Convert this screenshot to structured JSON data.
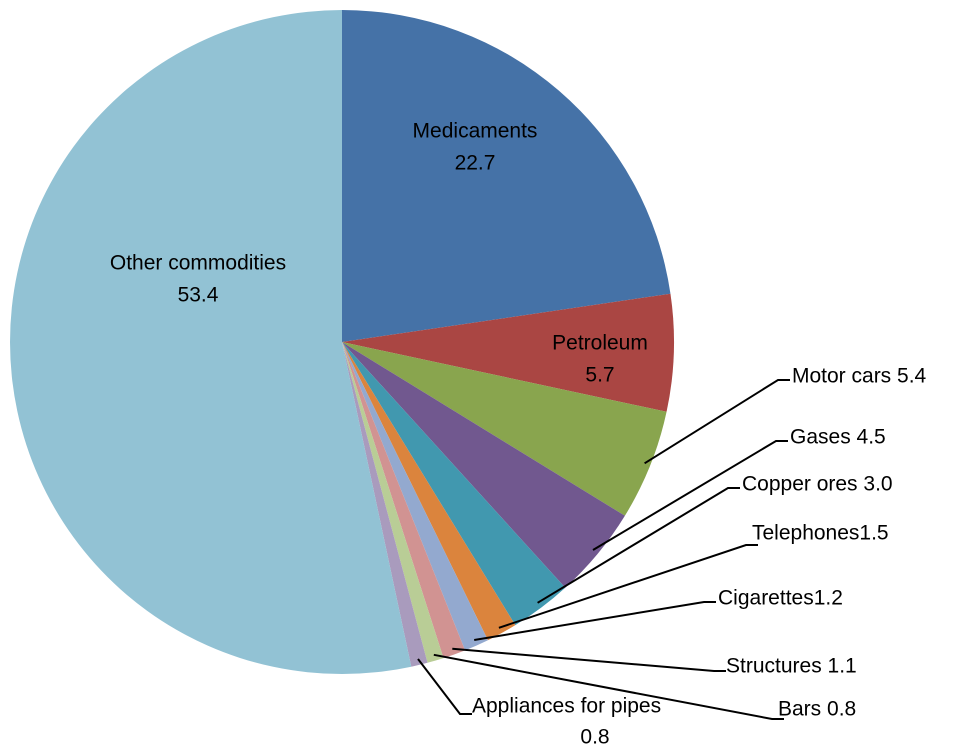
{
  "chart_data": {
    "type": "pie",
    "slices": [
      {
        "label": "Medicaments",
        "value": 22.7,
        "value_text": "22.7",
        "color": "#4572A7",
        "label_style": "inside"
      },
      {
        "label": "Petroleum",
        "value": 5.7,
        "value_text": "5.7",
        "color": "#AA4643",
        "label_style": "inside"
      },
      {
        "label": "Motor cars",
        "value": 5.4,
        "value_text": "Motor cars 5.4",
        "color": "#89A54E",
        "label_style": "leader"
      },
      {
        "label": "Gases",
        "value": 4.5,
        "value_text": "Gases 4.5",
        "color": "#71588F",
        "label_style": "leader"
      },
      {
        "label": "Copper ores",
        "value": 3.0,
        "value_text": "Copper ores 3.0",
        "color": "#4198AF",
        "label_style": "leader"
      },
      {
        "label": "Telephones",
        "value": 1.5,
        "value_text": "Telephones1.5",
        "color": "#DB843D",
        "label_style": "leader"
      },
      {
        "label": "Cigarettes",
        "value": 1.2,
        "value_text": "Cigarettes1.2",
        "color": "#93A9CF",
        "label_style": "leader"
      },
      {
        "label": "Structures",
        "value": 1.1,
        "value_text": "Structures 1.1",
        "color": "#D19392",
        "label_style": "leader"
      },
      {
        "label": "Bars",
        "value": 0.8,
        "value_text": "Bars 0.8",
        "color": "#B9CD96",
        "label_style": "leader"
      },
      {
        "label": "Appliances for pipes",
        "value": 0.8,
        "value_text": "0.8",
        "color": "#A99BBD",
        "label_style": "leader-two-line"
      },
      {
        "label": "Other commodities",
        "value": 53.4,
        "value_text": "53.4",
        "color": "#92C2D4",
        "label_style": "inside"
      }
    ],
    "start_angle_deg": 0,
    "direction": "clockwise",
    "legend": "none"
  }
}
